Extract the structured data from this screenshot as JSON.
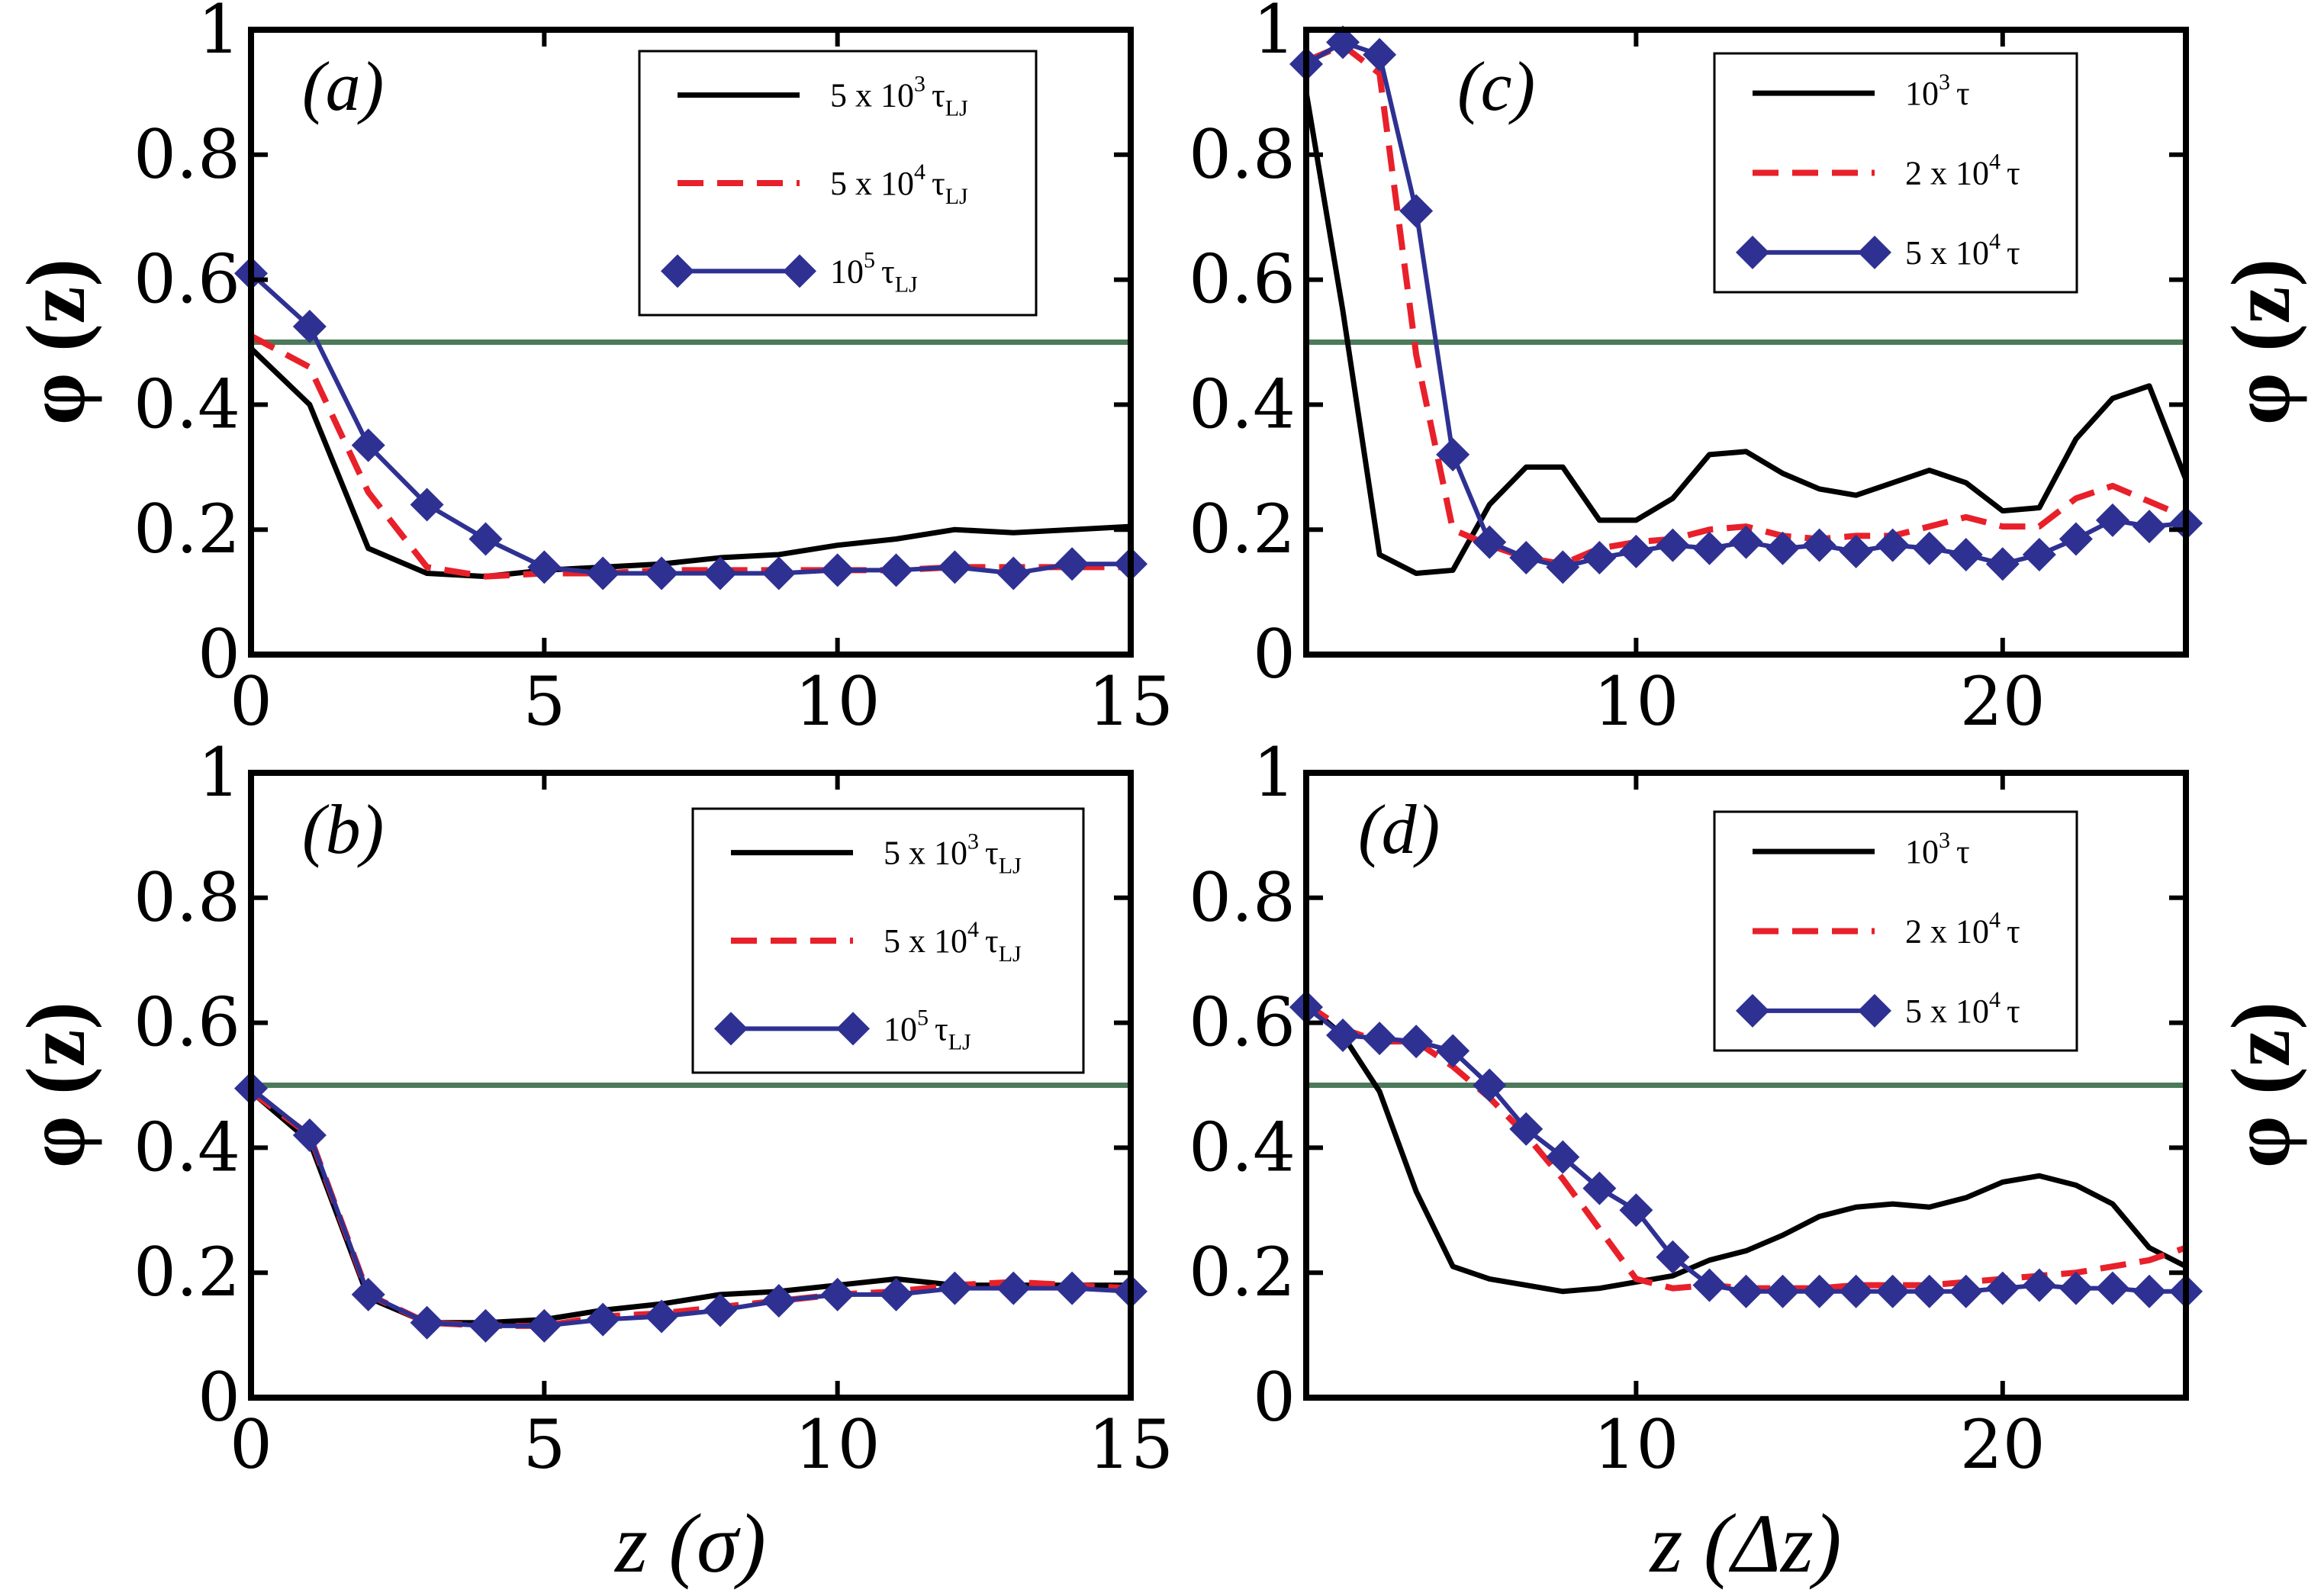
{
  "figure": {
    "y_label_main": "φ (z)",
    "x_label_left": "z (σ)",
    "x_label_right": "z (Δz)"
  },
  "colors": {
    "black": "#000000",
    "red": "#e8202a",
    "blue": "#2e3192",
    "green": "#4b7a5a"
  },
  "chart_data": [
    {
      "id": "a",
      "type": "line",
      "panel_label": "(a)",
      "xlim": [
        0,
        15
      ],
      "ylim": [
        0,
        1
      ],
      "xticks": [
        0,
        5,
        10,
        15
      ],
      "yticks": [
        0,
        0.2,
        0.4,
        0.6,
        0.8,
        1
      ],
      "xtick_labels": [
        "0",
        "5",
        "10",
        "15"
      ],
      "ytick_labels": [
        "0",
        "0.2",
        "0.4",
        "0.6",
        "0.8",
        "1"
      ],
      "ylabel": "φ (z)",
      "xlabel": "",
      "reference_line": 0.5,
      "legend_position": "top-right",
      "series": [
        {
          "name": "5 x 10^3 τLJ",
          "style": "solid",
          "color": "black",
          "label": {
            "base": "5 x 10",
            "exp": "3",
            "tau": "τ",
            "sub": "LJ"
          },
          "x": [
            0,
            1,
            2,
            3,
            4,
            5,
            6,
            7,
            8,
            9,
            10,
            11,
            12,
            13,
            14,
            15
          ],
          "y": [
            0.49,
            0.4,
            0.17,
            0.13,
            0.125,
            0.135,
            0.14,
            0.145,
            0.155,
            0.16,
            0.175,
            0.185,
            0.2,
            0.195,
            0.2,
            0.205
          ]
        },
        {
          "name": "5 x 10^4 τLJ",
          "style": "dashed",
          "color": "red",
          "label": {
            "base": "5 x 10",
            "exp": "4",
            "tau": "τ",
            "sub": "LJ"
          },
          "x": [
            0,
            1,
            2,
            3,
            4,
            5,
            6,
            7,
            8,
            9,
            10,
            11,
            12,
            13,
            14,
            15
          ],
          "y": [
            0.51,
            0.46,
            0.26,
            0.14,
            0.125,
            0.13,
            0.13,
            0.135,
            0.135,
            0.135,
            0.135,
            0.135,
            0.14,
            0.14,
            0.14,
            0.14
          ]
        },
        {
          "name": "10^5 τLJ",
          "style": "diamond",
          "color": "blue",
          "label": {
            "base": "10",
            "exp": "5",
            "tau": "τ",
            "sub": "LJ"
          },
          "x": [
            0,
            1,
            2,
            3,
            4,
            5,
            6,
            7,
            8,
            9,
            10,
            11,
            12,
            13,
            14,
            15
          ],
          "y": [
            0.61,
            0.525,
            0.335,
            0.24,
            0.185,
            0.14,
            0.13,
            0.13,
            0.13,
            0.13,
            0.135,
            0.135,
            0.14,
            0.13,
            0.145,
            0.145
          ]
        }
      ]
    },
    {
      "id": "b",
      "type": "line",
      "panel_label": "(b)",
      "xlim": [
        0,
        15
      ],
      "ylim": [
        0,
        1
      ],
      "xticks": [
        0,
        5,
        10,
        15
      ],
      "yticks": [
        0,
        0.2,
        0.4,
        0.6,
        0.8,
        1
      ],
      "xtick_labels": [
        "0",
        "5",
        "10",
        "15"
      ],
      "ytick_labels": [
        "0",
        "0.2",
        "0.4",
        "0.6",
        "0.8",
        "1"
      ],
      "ylabel": "φ (z)",
      "xlabel": "z (σ)",
      "reference_line": 0.5,
      "legend_position": "top-right",
      "series": [
        {
          "name": "5 x 10^3 τLJ",
          "style": "solid",
          "color": "black",
          "label": {
            "base": "5 x 10",
            "exp": "3",
            "tau": "τ",
            "sub": "LJ"
          },
          "x": [
            0,
            1,
            2,
            3,
            4,
            5,
            6,
            7,
            8,
            9,
            10,
            11,
            12,
            13,
            14,
            15
          ],
          "y": [
            0.49,
            0.41,
            0.16,
            0.12,
            0.12,
            0.125,
            0.14,
            0.15,
            0.165,
            0.17,
            0.18,
            0.19,
            0.18,
            0.18,
            0.18,
            0.18
          ]
        },
        {
          "name": "5 x 10^4 τLJ",
          "style": "dashed",
          "color": "red",
          "label": {
            "base": "5 x 10",
            "exp": "4",
            "tau": "τ",
            "sub": "LJ"
          },
          "x": [
            0,
            1,
            2,
            3,
            4,
            5,
            6,
            7,
            8,
            9,
            10,
            11,
            12,
            13,
            14,
            15
          ],
          "y": [
            0.49,
            0.42,
            0.165,
            0.12,
            0.115,
            0.115,
            0.13,
            0.135,
            0.145,
            0.155,
            0.165,
            0.17,
            0.18,
            0.185,
            0.18,
            0.175
          ]
        },
        {
          "name": "10^5 τLJ",
          "style": "diamond",
          "color": "blue",
          "label": {
            "base": "10",
            "exp": "5",
            "tau": "τ",
            "sub": "LJ"
          },
          "x": [
            0,
            1,
            2,
            3,
            4,
            5,
            6,
            7,
            8,
            9,
            10,
            11,
            12,
            13,
            14,
            15
          ],
          "y": [
            0.495,
            0.42,
            0.165,
            0.12,
            0.115,
            0.115,
            0.125,
            0.13,
            0.14,
            0.155,
            0.165,
            0.165,
            0.175,
            0.175,
            0.175,
            0.17
          ]
        }
      ]
    },
    {
      "id": "c",
      "type": "line",
      "panel_label": "(c)",
      "xlim": [
        1,
        25
      ],
      "ylim": [
        0,
        1
      ],
      "xticks": [
        10,
        20
      ],
      "yticks": [
        0,
        0.2,
        0.4,
        0.6,
        0.8,
        1
      ],
      "xtick_labels": [
        "10",
        "20"
      ],
      "ytick_labels": [
        "0",
        "0.2",
        "0.4",
        "0.6",
        "0.8",
        "1"
      ],
      "ylabel": "φ (z)",
      "xlabel": "",
      "reference_line": 0.5,
      "legend_position": "top-center",
      "series": [
        {
          "name": "10^3 τ",
          "style": "solid",
          "color": "black",
          "label": {
            "base": "10",
            "exp": "3",
            "tau": "τ",
            "sub": ""
          },
          "x": [
            1,
            2,
            3,
            4,
            5,
            6,
            7,
            8,
            9,
            10,
            11,
            12,
            13,
            14,
            15,
            16,
            17,
            18,
            19,
            20,
            21,
            22,
            23,
            24,
            25
          ],
          "y": [
            0.9,
            0.55,
            0.16,
            0.13,
            0.135,
            0.24,
            0.3,
            0.3,
            0.215,
            0.215,
            0.25,
            0.32,
            0.325,
            0.29,
            0.265,
            0.255,
            0.275,
            0.295,
            0.275,
            0.23,
            0.235,
            0.345,
            0.41,
            0.43,
            0.28
          ]
        },
        {
          "name": "2 x 10^4 τ",
          "style": "dashed",
          "color": "red",
          "label": {
            "base": "2 x 10",
            "exp": "4",
            "tau": "τ",
            "sub": ""
          },
          "x": [
            1,
            2,
            3,
            4,
            5,
            6,
            7,
            8,
            9,
            10,
            11,
            12,
            13,
            14,
            15,
            16,
            17,
            18,
            19,
            20,
            21,
            22,
            23,
            24,
            25
          ],
          "y": [
            0.95,
            0.975,
            0.93,
            0.48,
            0.2,
            0.175,
            0.155,
            0.145,
            0.17,
            0.18,
            0.185,
            0.2,
            0.205,
            0.19,
            0.185,
            0.19,
            0.19,
            0.205,
            0.22,
            0.205,
            0.205,
            0.25,
            0.27,
            0.245,
            0.22
          ]
        },
        {
          "name": "5 x 10^4 τ",
          "style": "diamond",
          "color": "blue",
          "label": {
            "base": "5 x 10",
            "exp": "4",
            "tau": "τ",
            "sub": ""
          },
          "x": [
            1,
            2,
            3,
            4,
            5,
            6,
            7,
            8,
            9,
            10,
            11,
            12,
            13,
            14,
            15,
            16,
            17,
            18,
            19,
            20,
            21,
            22,
            23,
            24,
            25
          ],
          "y": [
            0.945,
            0.98,
            0.96,
            0.71,
            0.32,
            0.18,
            0.155,
            0.14,
            0.155,
            0.165,
            0.175,
            0.17,
            0.18,
            0.17,
            0.175,
            0.165,
            0.175,
            0.17,
            0.16,
            0.145,
            0.16,
            0.185,
            0.215,
            0.205,
            0.21
          ]
        }
      ]
    },
    {
      "id": "d",
      "type": "line",
      "panel_label": "(d)",
      "xlim": [
        1,
        25
      ],
      "ylim": [
        0,
        1
      ],
      "xticks": [
        10,
        20
      ],
      "yticks": [
        0,
        0.2,
        0.4,
        0.6,
        0.8,
        1
      ],
      "xtick_labels": [
        "10",
        "20"
      ],
      "ytick_labels": [
        "0",
        "0.2",
        "0.4",
        "0.6",
        "0.8",
        "1"
      ],
      "ylabel": "φ (z)",
      "xlabel": "z (Δz)",
      "reference_line": 0.5,
      "legend_position": "top-center",
      "series": [
        {
          "name": "10^3 τ",
          "style": "solid",
          "color": "black",
          "label": {
            "base": "10",
            "exp": "3",
            "tau": "τ",
            "sub": ""
          },
          "x": [
            1,
            2,
            3,
            4,
            5,
            6,
            7,
            8,
            9,
            10,
            11,
            12,
            13,
            14,
            15,
            16,
            17,
            18,
            19,
            20,
            21,
            22,
            23,
            24,
            25
          ],
          "y": [
            0.63,
            0.58,
            0.49,
            0.33,
            0.21,
            0.19,
            0.18,
            0.17,
            0.175,
            0.185,
            0.195,
            0.22,
            0.235,
            0.26,
            0.29,
            0.305,
            0.31,
            0.305,
            0.32,
            0.345,
            0.355,
            0.34,
            0.31,
            0.24,
            0.21
          ]
        },
        {
          "name": "2 x 10^4 τ",
          "style": "dashed",
          "color": "red",
          "label": {
            "base": "2 x 10",
            "exp": "4",
            "tau": "τ",
            "sub": ""
          },
          "x": [
            1,
            2,
            3,
            4,
            5,
            6,
            7,
            8,
            9,
            10,
            11,
            12,
            13,
            14,
            15,
            16,
            17,
            18,
            19,
            20,
            21,
            22,
            23,
            24,
            25
          ],
          "y": [
            0.63,
            0.59,
            0.57,
            0.57,
            0.53,
            0.48,
            0.42,
            0.35,
            0.27,
            0.19,
            0.175,
            0.18,
            0.175,
            0.175,
            0.175,
            0.18,
            0.18,
            0.18,
            0.185,
            0.19,
            0.195,
            0.2,
            0.21,
            0.22,
            0.24
          ]
        },
        {
          "name": "5 x 10^4 τ",
          "style": "diamond",
          "color": "blue",
          "label": {
            "base": "5 x 10",
            "exp": "4",
            "tau": "τ",
            "sub": ""
          },
          "x": [
            1,
            2,
            3,
            4,
            5,
            6,
            7,
            8,
            9,
            10,
            11,
            12,
            13,
            14,
            15,
            16,
            17,
            18,
            19,
            20,
            21,
            22,
            23,
            24,
            25
          ],
          "y": [
            0.625,
            0.58,
            0.575,
            0.57,
            0.555,
            0.5,
            0.43,
            0.385,
            0.335,
            0.3,
            0.225,
            0.18,
            0.17,
            0.17,
            0.17,
            0.17,
            0.17,
            0.17,
            0.17,
            0.175,
            0.18,
            0.175,
            0.175,
            0.17,
            0.17
          ]
        }
      ]
    }
  ]
}
